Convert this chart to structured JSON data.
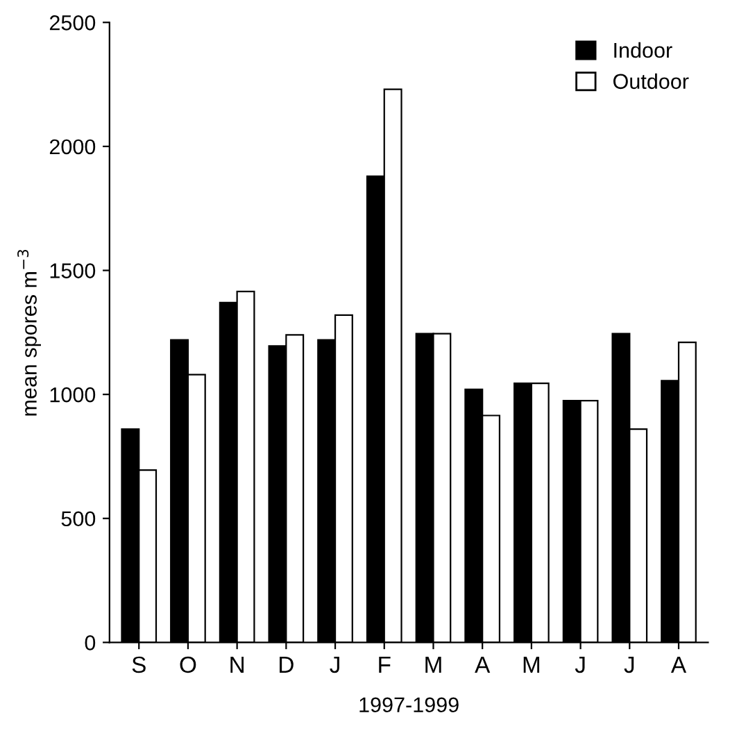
{
  "chart_data": {
    "type": "bar",
    "xlabel": "1997-1999",
    "ylabel": "mean spores m$^{−3}$",
    "categories": [
      "S",
      "O",
      "N",
      "D",
      "J",
      "F",
      "M",
      "A",
      "M",
      "J",
      "J",
      "A"
    ],
    "series": [
      {
        "name": "Indoor",
        "color": "#000000",
        "values": [
          860,
          1220,
          1370,
          1195,
          1220,
          1880,
          1245,
          1020,
          1045,
          975,
          1245,
          1055
        ]
      },
      {
        "name": "Outdoor",
        "color": "#ffffff",
        "values": [
          695,
          1080,
          1415,
          1240,
          1320,
          2230,
          1245,
          915,
          1045,
          975,
          860,
          1210
        ]
      }
    ],
    "ylim": [
      0,
      2500
    ],
    "yticks": [
      0,
      500,
      1000,
      1500,
      2000,
      2500
    ],
    "grid": false,
    "legend": "top right"
  }
}
